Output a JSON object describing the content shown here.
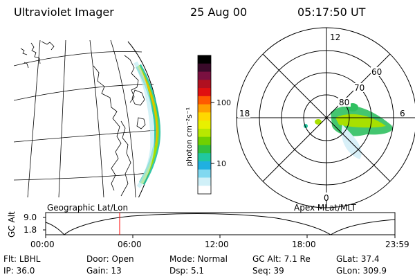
{
  "header": {
    "instrument": "Ultraviolet Imager",
    "date": "25 Aug 00",
    "time": "05:17:50 UT"
  },
  "colorbar": {
    "unit_label": "photon cm⁻²s⁻¹",
    "ticks": [
      "100",
      "10"
    ],
    "colors": [
      "#000000",
      "#3a0a2a",
      "#7a1040",
      "#b01020",
      "#e01010",
      "#ff5a00",
      "#ffa000",
      "#ffd800",
      "#e8f000",
      "#b8e800",
      "#70d000",
      "#30c040",
      "#20c8a0",
      "#20b0e0",
      "#80d8f0",
      "#d0f0f8",
      "#ffffff"
    ]
  },
  "polar_plot": {
    "mlt_labels": [
      "12",
      "18",
      "6",
      "0"
    ],
    "lat_labels": [
      "60",
      "70",
      "80"
    ]
  },
  "timeline": {
    "left_label": "Geographic Lat/Lon",
    "right_label": "Apex MLat/MLT",
    "y_axis_label": "GC Alt",
    "y_ticks": [
      "9.0",
      "1.8"
    ],
    "x_ticks": [
      "00:00",
      "06:00",
      "12:00",
      "18:00",
      "23:59"
    ],
    "marker_color": "#ff0000"
  },
  "info": {
    "row1": [
      {
        "label": "Flt:",
        "value": "LBHL"
      },
      {
        "label": "Door:",
        "value": "Open"
      },
      {
        "label": "Mode:",
        "value": "Normal"
      },
      {
        "label": "GC Alt:",
        "value": "7.1 Re"
      },
      {
        "label": "GLat:",
        "value": "37.4"
      }
    ],
    "row2": [
      {
        "label": "IP:",
        "value": "36.0"
      },
      {
        "label": "Gain:",
        "value": "13"
      },
      {
        "label": "Dsp:",
        "value": "5.1"
      },
      {
        "label": "Seq:",
        "value": "39"
      },
      {
        "label": "GLon:",
        "value": "309.9"
      }
    ]
  }
}
